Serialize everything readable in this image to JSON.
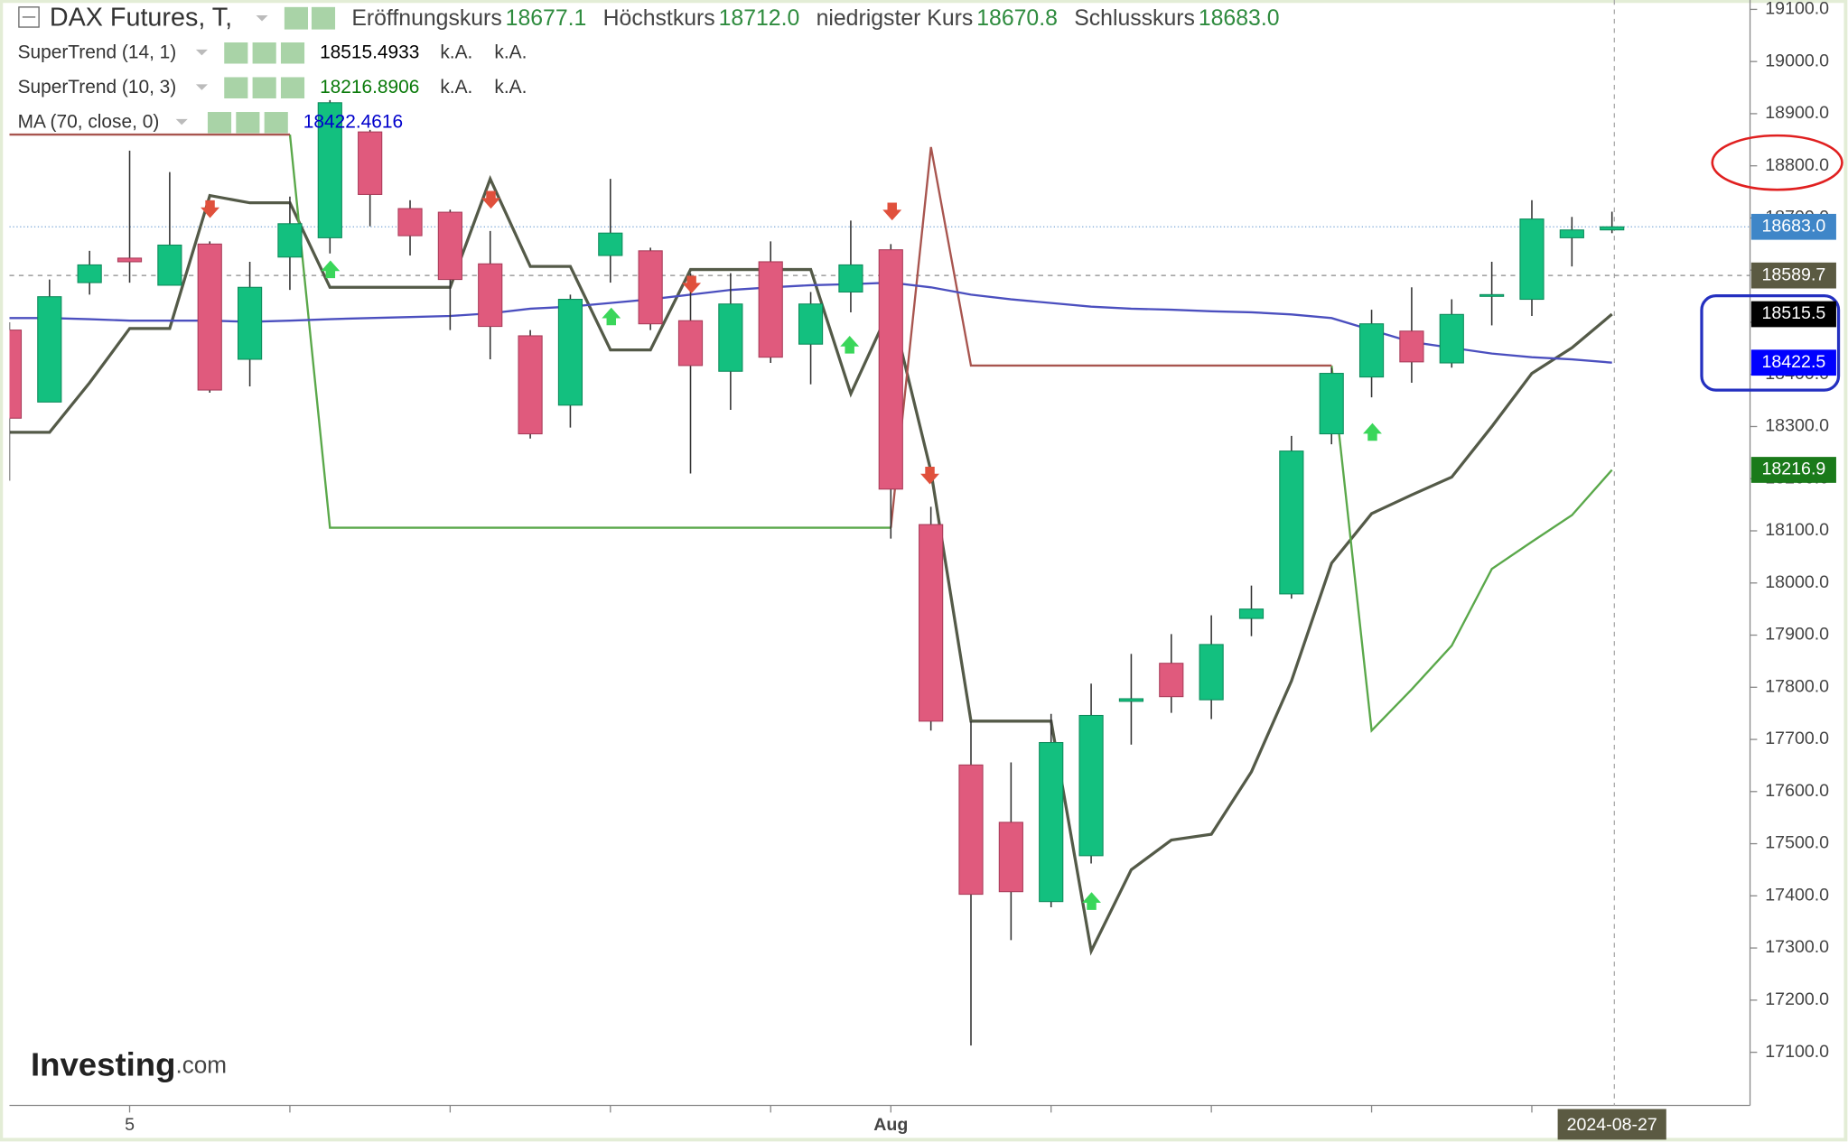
{
  "header": {
    "title": "DAX Futures, T,",
    "ohlc": [
      {
        "label": "Eröffnungskurs",
        "value": "18677.1"
      },
      {
        "label": "Höchstkurs",
        "value": "18712.0"
      },
      {
        "label": "niedrigster Kurs",
        "value": "18670.8"
      },
      {
        "label": "Schlusskurs",
        "value": "18683.0"
      }
    ]
  },
  "logo": {
    "name": "Investing",
    "suffix": ".com"
  },
  "chart_data": {
    "type": "candlestick",
    "categories": [
      null,
      null,
      null,
      "5",
      null,
      null,
      null,
      null,
      null,
      null,
      null,
      null,
      null,
      null,
      null,
      null,
      null,
      null,
      null,
      null,
      null,
      null,
      "Aug",
      null,
      null,
      null,
      null,
      null,
      null,
      null,
      null,
      null,
      null,
      null,
      null,
      null,
      null,
      null,
      null,
      null,
      "2024-08-27"
    ],
    "open": [
      18485,
      18347,
      18576,
      18623,
      18571,
      18650,
      18429,
      18625,
      18662,
      18865,
      18718,
      18711,
      18612,
      18474,
      18341,
      18628,
      18637,
      18503,
      18406,
      18616,
      18458,
      18558,
      18639,
      18112,
      17651,
      17541,
      17389,
      17477,
      17773,
      17846,
      17776,
      17932,
      17979,
      18286,
      18395,
      18483,
      18422,
      18551,
      18544,
      18662,
      18677.1
    ],
    "high": [
      18500,
      18582,
      18637,
      18829,
      18788,
      18655,
      18616,
      18741,
      18926,
      18869,
      18734,
      18716,
      18675,
      18485,
      18553,
      18775,
      18643,
      18594,
      18594,
      18655,
      18558,
      18695,
      18650,
      18146,
      17735,
      17656,
      17749,
      17807,
      17864,
      17902,
      17938,
      17995,
      18282,
      18413,
      18524,
      18567,
      18544,
      18616,
      18734,
      18702,
      18712
    ],
    "low": [
      18196,
      18347,
      18553,
      18576,
      18571,
      18365,
      18377,
      18562,
      18632,
      18684,
      18628,
      18485,
      18429,
      18277,
      18298,
      18576,
      18485,
      18210,
      18332,
      18422,
      18381,
      18519,
      18085,
      17717,
      17113,
      17315,
      17378,
      17462,
      17690,
      17751,
      17739,
      17898,
      17970,
      18266,
      18356,
      18384,
      18413,
      18494,
      18512,
      18607,
      18670.8
    ],
    "close": [
      18316,
      18549,
      18610,
      18616,
      18648,
      18370,
      18567,
      18689,
      18921,
      18745,
      18666,
      18582,
      18492,
      18286,
      18544,
      18671,
      18497,
      18417,
      18535,
      18433,
      18535,
      18610,
      18180,
      17735,
      17403,
      17408,
      17694,
      17746,
      17778,
      17782,
      17882,
      17950,
      18253,
      18402,
      18497,
      18424,
      18515,
      18553,
      18698,
      18677,
      18683
    ],
    "up_color": "#13c07f",
    "down_color": "#e05a7d",
    "series": [
      {
        "name": "SuperTrend (14, 1)",
        "value_label": "18515.4933",
        "label_color": "#000000",
        "extra": [
          "k.A.",
          "k.A."
        ],
        "color": "#545a48",
        "values": [
          18289,
          18289,
          18384,
          18488,
          18488,
          18743,
          18729,
          18729,
          18567,
          18567,
          18567,
          18567,
          18775,
          18607,
          18607,
          18447,
          18447,
          18601,
          18601,
          18601,
          18601,
          18363,
          18530,
          18214,
          17735,
          17735,
          17735,
          17294,
          17450,
          17507,
          17518,
          17638,
          17812,
          18038,
          18133,
          18169,
          18203,
          18300,
          18402,
          18451,
          18515.5
        ]
      },
      {
        "name": "SuperTrend (10, 3)",
        "value_label": "18216.8906",
        "label_color": "#0a7a0a",
        "extra": [
          "k.A.",
          "k.A."
        ],
        "color": "#5aa84a",
        "down_color": "#a8554f",
        "values": [
          null,
          null,
          null,
          null,
          null,
          null,
          null,
          18860,
          18106,
          18106,
          18106,
          18106,
          18106,
          18106,
          18106,
          18106,
          18106,
          18106,
          18106,
          18106,
          18106,
          18106,
          18106,
          null,
          null,
          null,
          null,
          null,
          null,
          null,
          null,
          null,
          null,
          18417,
          17717,
          17796,
          17880,
          18027,
          18079,
          18130,
          18216.9
        ],
        "down_values": [
          18860,
          18860,
          18860,
          18860,
          18860,
          18860,
          18860,
          18860,
          null,
          null,
          null,
          null,
          null,
          null,
          null,
          null,
          null,
          null,
          null,
          null,
          null,
          null,
          18106,
          18836,
          18417,
          18417,
          18417,
          18417,
          18417,
          18417,
          18417,
          18417,
          18417,
          18417,
          null,
          null,
          null,
          null,
          null,
          null,
          null
        ]
      },
      {
        "name": "MA (70, close, 0)",
        "value_label": "18422.4616",
        "label_color": "#0000cc",
        "color": "#4b4fbf",
        "values": [
          18508,
          18508,
          18506,
          18503,
          18503,
          18503,
          18501,
          18503,
          18506,
          18508,
          18510,
          18512,
          18517,
          18526,
          18530,
          18537,
          18544,
          18553,
          18562,
          18567,
          18571,
          18573,
          18576,
          18567,
          18553,
          18544,
          18537,
          18530,
          18526,
          18524,
          18521,
          18519,
          18515,
          18508,
          18485,
          18462,
          18451,
          18440,
          18433,
          18429,
          18422.5
        ]
      }
    ],
    "price_tags": [
      {
        "value": 18683,
        "label": "18683.0",
        "color": "#3f86c8",
        "line": "dotted"
      },
      {
        "value": 18589.7,
        "label": "18589.7",
        "color": "#5b5a42",
        "line": "dashed"
      },
      {
        "value": 18515.5,
        "label": "18515.5",
        "color": "#000000"
      },
      {
        "value": 18422.5,
        "label": "18422.5",
        "color": "#0000ff"
      },
      {
        "value": 18216.9,
        "label": "18216.9",
        "color": "#1a7a1a"
      }
    ],
    "ylim": [
      16998,
      19118
    ],
    "yticks": [
      {
        "value": 19100,
        "label": "19100.0"
      },
      {
        "value": 19000,
        "label": "19000.0"
      },
      {
        "value": 18900,
        "label": "18900.0"
      },
      {
        "value": 18800,
        "label": "18800.0"
      },
      {
        "value": 18700,
        "label": "18700.0"
      },
      {
        "value": 18600,
        "label": "18600.0"
      },
      {
        "value": 18500,
        "label": "18500.0"
      },
      {
        "value": 18400,
        "label": "18400.0"
      },
      {
        "value": 18300,
        "label": "18300.0"
      },
      {
        "value": 18200,
        "label": "18200.0"
      },
      {
        "value": 18100,
        "label": "18100.0"
      },
      {
        "value": 18000,
        "label": "18000.0"
      },
      {
        "value": 17900,
        "label": "17900.0"
      },
      {
        "value": 17800,
        "label": "17800.0"
      },
      {
        "value": 17700,
        "label": "17700.0"
      },
      {
        "value": 17600,
        "label": "17600.0"
      },
      {
        "value": 17500,
        "label": "17500.0"
      },
      {
        "value": 17400,
        "label": "17400.0"
      },
      {
        "value": 17300,
        "label": "17300.0"
      },
      {
        "value": 17200,
        "label": "17200.0"
      },
      {
        "value": 17100,
        "label": "17100.0"
      }
    ]
  }
}
